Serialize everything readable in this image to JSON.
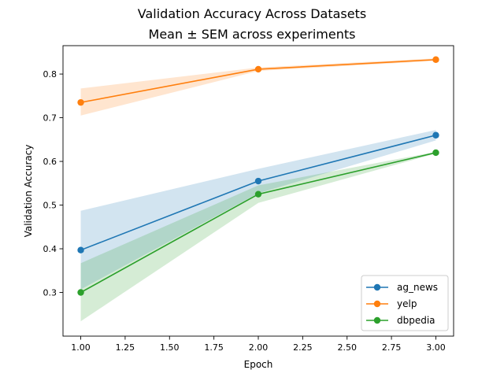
{
  "chart_data": {
    "type": "line",
    "title": "Validation Accuracy Across Datasets",
    "subtitle": "Mean ± SEM across experiments",
    "xlabel": "Epoch",
    "ylabel": "Validation Accuracy",
    "x": [
      1.0,
      2.0,
      3.0
    ],
    "xlim": [
      0.9,
      3.1
    ],
    "ylim": [
      0.2,
      0.865
    ],
    "x_ticks": [
      1.0,
      1.25,
      1.5,
      1.75,
      2.0,
      2.25,
      2.5,
      2.75,
      3.0
    ],
    "x_tick_labels": [
      "1.00",
      "1.25",
      "1.50",
      "1.75",
      "2.00",
      "2.25",
      "2.50",
      "2.75",
      "3.00"
    ],
    "y_ticks": [
      0.3,
      0.4,
      0.5,
      0.6,
      0.7,
      0.8
    ],
    "y_tick_labels": [
      "0.3",
      "0.4",
      "0.5",
      "0.6",
      "0.7",
      "0.8"
    ],
    "grid": false,
    "legend_position": "lower right",
    "series": [
      {
        "name": "ag_news",
        "color": "#1f77b4",
        "values": [
          0.397,
          0.555,
          0.66
        ],
        "band_lower": [
          0.307,
          0.527,
          0.648
        ],
        "band_upper": [
          0.487,
          0.583,
          0.672
        ]
      },
      {
        "name": "yelp",
        "color": "#ff7f0e",
        "values": [
          0.735,
          0.811,
          0.833
        ],
        "band_lower": [
          0.705,
          0.807,
          0.83
        ],
        "band_upper": [
          0.767,
          0.815,
          0.836
        ]
      },
      {
        "name": "dbpedia",
        "color": "#2ca02c",
        "values": [
          0.3,
          0.525,
          0.62
        ],
        "band_lower": [
          0.234,
          0.505,
          0.618
        ],
        "band_upper": [
          0.367,
          0.545,
          0.622
        ]
      }
    ]
  }
}
